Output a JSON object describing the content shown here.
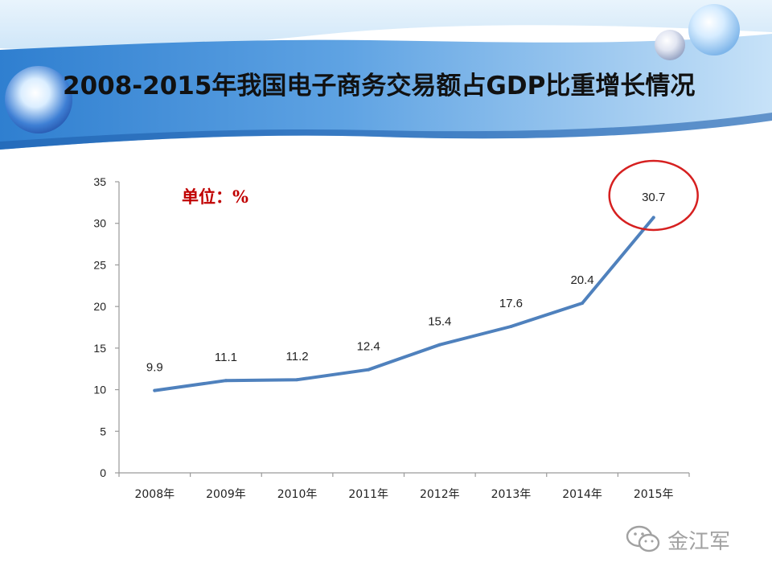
{
  "slide": {
    "title": "2008-2015年我国电子商务交易额占GDP比重增长情况",
    "watermark": "金江军"
  },
  "chart_data": {
    "type": "line",
    "title": "",
    "unit_label": "单位：%",
    "xlabel": "",
    "ylabel": "",
    "categories": [
      "2008年",
      "2009年",
      "2010年",
      "2011年",
      "2012年",
      "2013年",
      "2014年",
      "2015年"
    ],
    "series": [
      {
        "values": [
          9.9,
          11.1,
          11.2,
          12.4,
          15.4,
          17.6,
          20.4,
          30.7
        ],
        "data_labels": [
          "9.9",
          "11.1",
          "11.2",
          "12.4",
          "15.4",
          "17.6",
          "20.4",
          "30.7"
        ],
        "color": "#4f81bd"
      }
    ],
    "ylim": [
      0,
      35
    ],
    "yticks": [
      0,
      5,
      10,
      15,
      20,
      25,
      30,
      35
    ],
    "grid": false,
    "legend": "none",
    "highlight": {
      "category": "2015年",
      "shape": "ellipse",
      "color": "#d62020"
    }
  }
}
